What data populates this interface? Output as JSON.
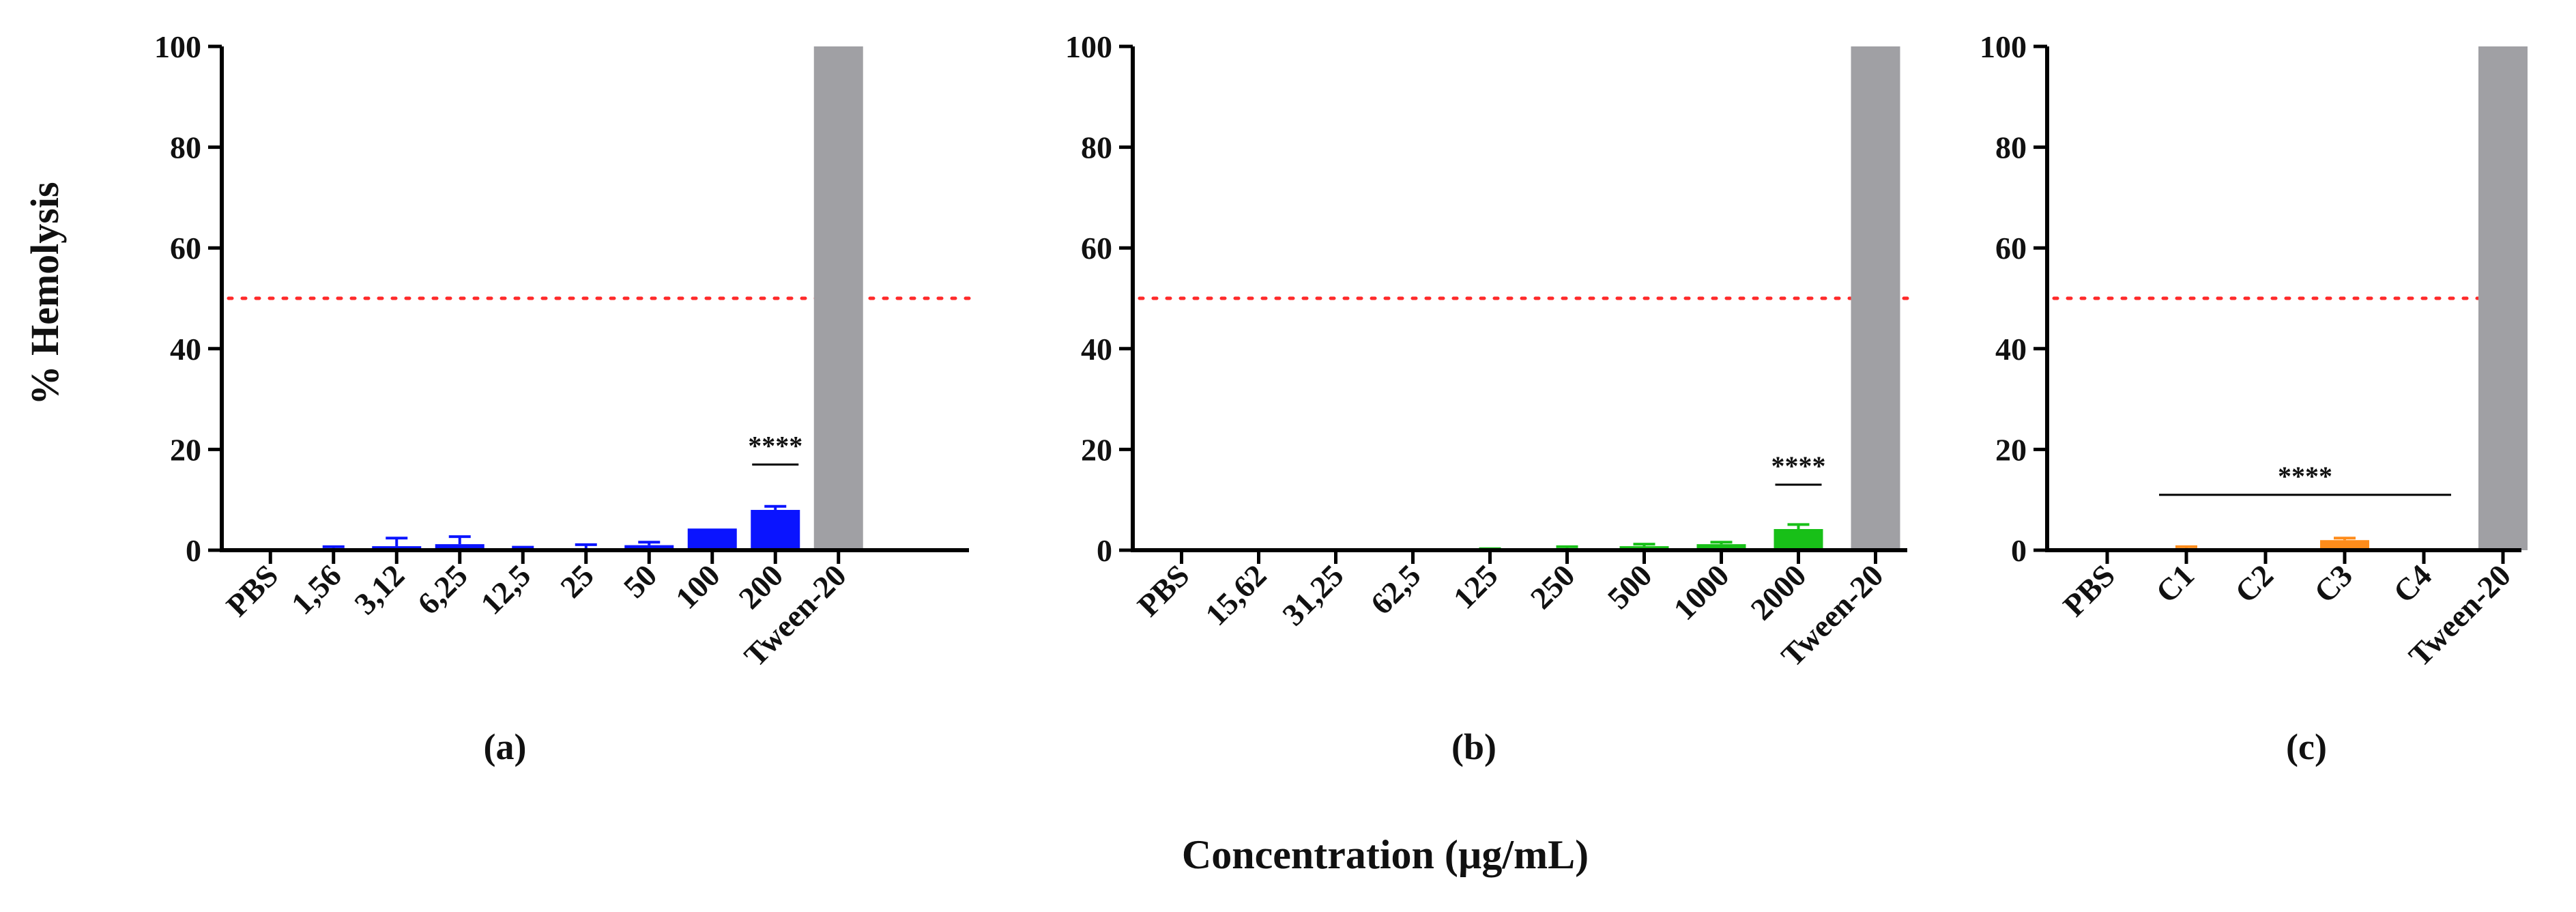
{
  "ylabel": "% Hemolysis",
  "xlabel": "Concentration (µg/mL)",
  "colors": {
    "threshold": "#ff2a2a",
    "axis": "#000000",
    "control": "#a0a0a4"
  },
  "chart_data": [
    {
      "type": "bar",
      "panel_label": "(a)",
      "ylim": [
        0,
        100
      ],
      "yticks": [
        "0",
        "20",
        "40",
        "60",
        "80",
        "100"
      ],
      "threshold": 50,
      "bar_color": "#0a14ff",
      "categories": [
        "PBS",
        "1,56",
        "3,12",
        "6,25",
        "12,5",
        "25",
        "50",
        "100",
        "200",
        "Tween-20"
      ],
      "values": [
        0,
        0.2,
        0.8,
        1.2,
        0.2,
        0.3,
        1.0,
        4.3,
        8.0,
        100
      ],
      "errors": [
        0,
        0.5,
        1.6,
        1.5,
        0.4,
        0.8,
        0.6,
        0,
        0.7,
        0
      ],
      "significance": {
        "text": "****",
        "from_index": 8,
        "to_index": 8,
        "y": 17
      }
    },
    {
      "type": "bar",
      "panel_label": "(b)",
      "ylim": [
        0,
        100
      ],
      "yticks": [
        "0",
        "20",
        "40",
        "60",
        "80",
        "100"
      ],
      "threshold": 50,
      "bar_color": "#18c018",
      "categories": [
        "PBS",
        "15,62",
        "31,25",
        "62,5",
        "125",
        "250",
        "500",
        "1000",
        "2000",
        "Tween-20"
      ],
      "values": [
        0,
        0,
        0,
        0,
        0.1,
        0.4,
        0.8,
        1.2,
        4.2,
        100
      ],
      "errors": [
        0,
        0,
        0,
        0,
        0.2,
        0.3,
        0.4,
        0.4,
        0.9,
        0
      ],
      "significance": {
        "text": "****",
        "from_index": 8,
        "to_index": 8,
        "y": 13
      }
    },
    {
      "type": "bar",
      "panel_label": "(c)",
      "ylim": [
        0,
        100
      ],
      "yticks": [
        "0",
        "20",
        "40",
        "60",
        "80",
        "100"
      ],
      "threshold": 50,
      "bar_color": "#ff8c1a",
      "categories": [
        "PBS",
        "C1",
        "C2",
        "C3",
        "C4",
        "Tween-20"
      ],
      "values": [
        0,
        0.4,
        0,
        2.0,
        0,
        100
      ],
      "errors": [
        0,
        0.3,
        0,
        0.4,
        0,
        0
      ],
      "significance": {
        "text": "****",
        "from_index": 1,
        "to_index": 4,
        "y": 11
      }
    }
  ]
}
